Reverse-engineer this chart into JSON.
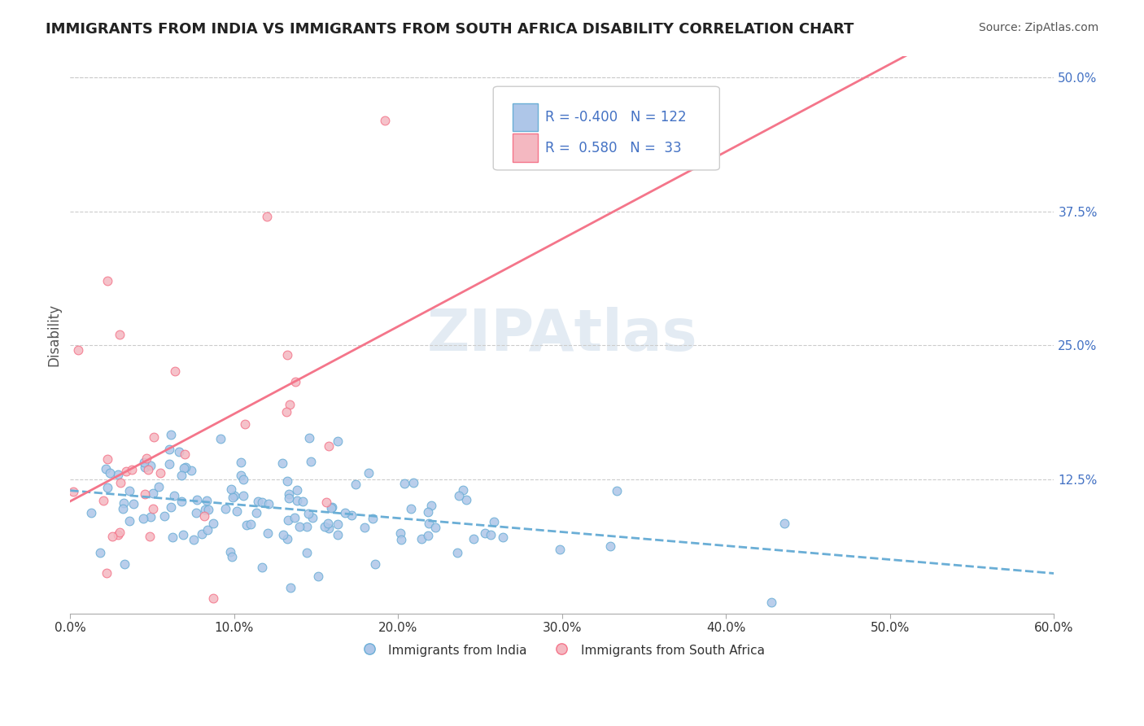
{
  "title": "IMMIGRANTS FROM INDIA VS IMMIGRANTS FROM SOUTH AFRICA DISABILITY CORRELATION CHART",
  "source": "Source: ZipAtlas.com",
  "xlabel_india": "Immigrants from India",
  "xlabel_sa": "Immigrants from South Africa",
  "ylabel": "Disability",
  "xlim": [
    0.0,
    0.6
  ],
  "ylim": [
    0.0,
    0.52
  ],
  "xticks": [
    0.0,
    0.1,
    0.2,
    0.3,
    0.4,
    0.5,
    0.6
  ],
  "xtick_labels": [
    "0.0%",
    "10.0%",
    "20.0%",
    "30.0%",
    "40.0%",
    "50.0%",
    "60.0%"
  ],
  "ytick_labels_right": [
    "12.5%",
    "25.0%",
    "37.5%",
    "50.0%"
  ],
  "ytick_vals_right": [
    0.125,
    0.25,
    0.375,
    0.5
  ],
  "R_india": -0.4,
  "N_india": 122,
  "R_sa": 0.58,
  "N_sa": 33,
  "color_india": "#aec6e8",
  "color_sa": "#f4b8c1",
  "line_color_india": "#6aaed6",
  "line_color_sa": "#f4758a",
  "legend_text_color": "#4472c4",
  "background_color": "#ffffff",
  "watermark_text": "ZIPAtlas",
  "watermark_color": "#c8d8e8",
  "seed": 42
}
